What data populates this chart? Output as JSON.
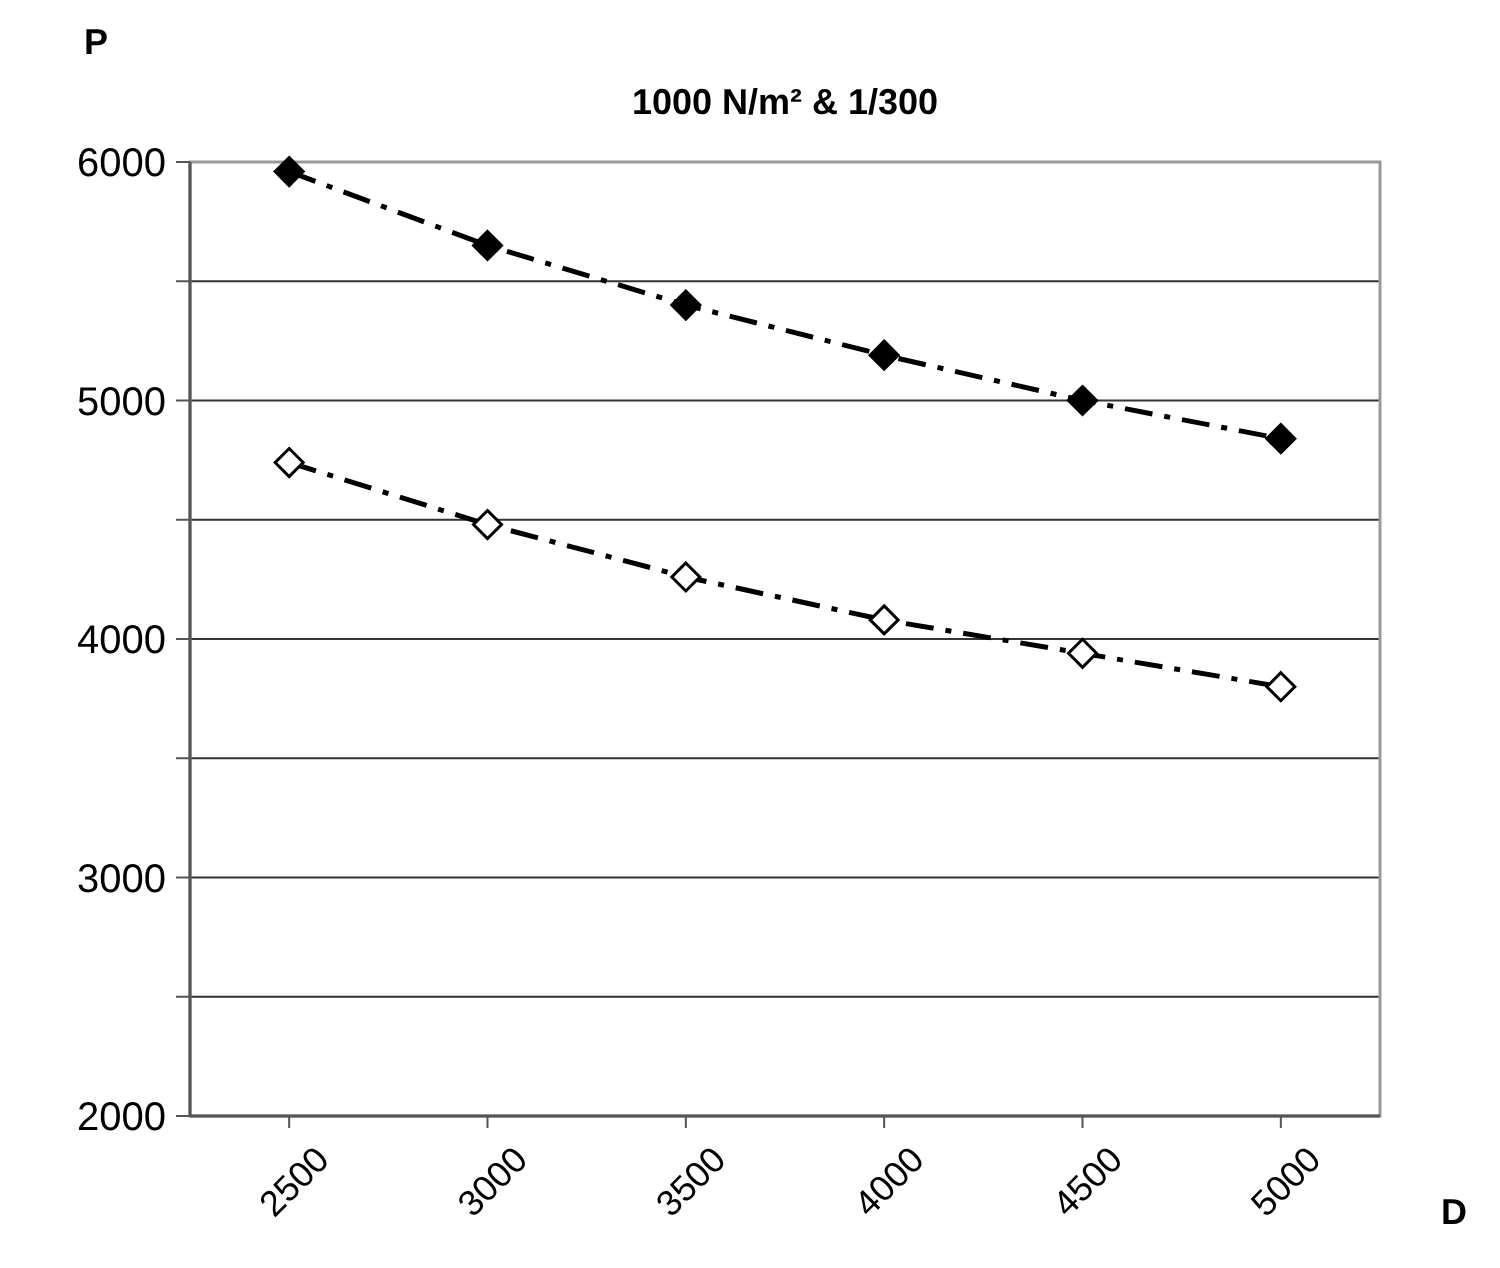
{
  "chart_data": {
    "type": "line",
    "title": "1000 N/m² & 1/300",
    "xlabel": "D",
    "ylabel": "P",
    "categories": [
      "2500",
      "3000",
      "3500",
      "4000",
      "4500",
      "5000"
    ],
    "series": [
      {
        "color": "#000000",
        "values": [
          5960,
          5650,
          5400,
          5190,
          5000,
          4840
        ]
      },
      {
        "color": "#000000",
        "values": [
          4740,
          4480,
          4260,
          4080,
          3940,
          3800
        ]
      }
    ],
    "ylim": [
      2000,
      6000
    ],
    "yticks": [
      2000,
      {
        "value": 2500,
        "label": null
      },
      3000,
      {
        "value": 3500,
        "label": null
      },
      4000,
      {
        "value": 4500,
        "label": null
      },
      5000,
      {
        "value": 5500,
        "label": null
      },
      6000
    ],
    "grid": "y",
    "marker": "diamond",
    "line_style": "dashdot"
  }
}
